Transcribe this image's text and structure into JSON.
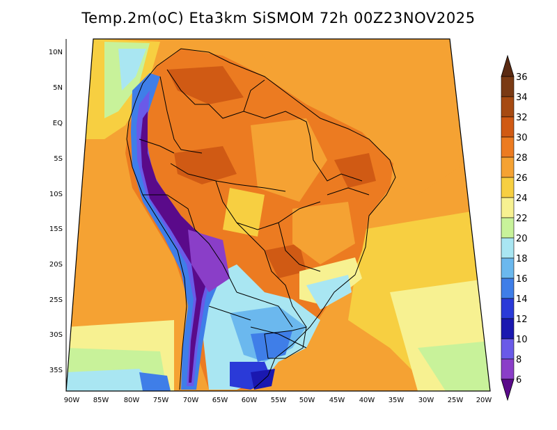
{
  "title": "Temp.2m(oC) Eta3km SiSMOM 72h 00Z23NOV2025",
  "map": {
    "variable": "2 m air temperature",
    "units": "oC",
    "region": "South America",
    "lon_range": [
      -90,
      -20
    ],
    "lat_range": [
      -37,
      11
    ],
    "lat_ticks": [
      "10N",
      "5N",
      "EQ",
      "5S",
      "10S",
      "15S",
      "20S",
      "25S",
      "30S",
      "35S"
    ],
    "lon_ticks": [
      "90W",
      "85W",
      "80W",
      "75W",
      "70W",
      "65W",
      "60W",
      "55W",
      "50W",
      "45W",
      "40W",
      "35W",
      "30W",
      "25W",
      "20W"
    ]
  },
  "colorbar": {
    "labels": [
      "36",
      "34",
      "32",
      "30",
      "28",
      "26",
      "24",
      "22",
      "20",
      "18",
      "16",
      "14",
      "12",
      "10",
      "8",
      "6"
    ],
    "colors": {
      "above_36": "#5a2a12",
      "34_36": "#7a3a14",
      "32_34": "#a64a12",
      "30_32": "#d05a14",
      "28_30": "#ec7b21",
      "26_28": "#f5a233",
      "24_26": "#f7cf41",
      "22_24": "#f7f191",
      "20_22": "#c8f29a",
      "18_20": "#a9e6f2",
      "16_18": "#6bb8ee",
      "14_16": "#3f7ee8",
      "12_14": "#2a3ad8",
      "10_12": "#1a18b0",
      "8_10": "#6a5ae8",
      "6_8": "#8a3ec8",
      "below_6": "#5a0a8a"
    }
  }
}
